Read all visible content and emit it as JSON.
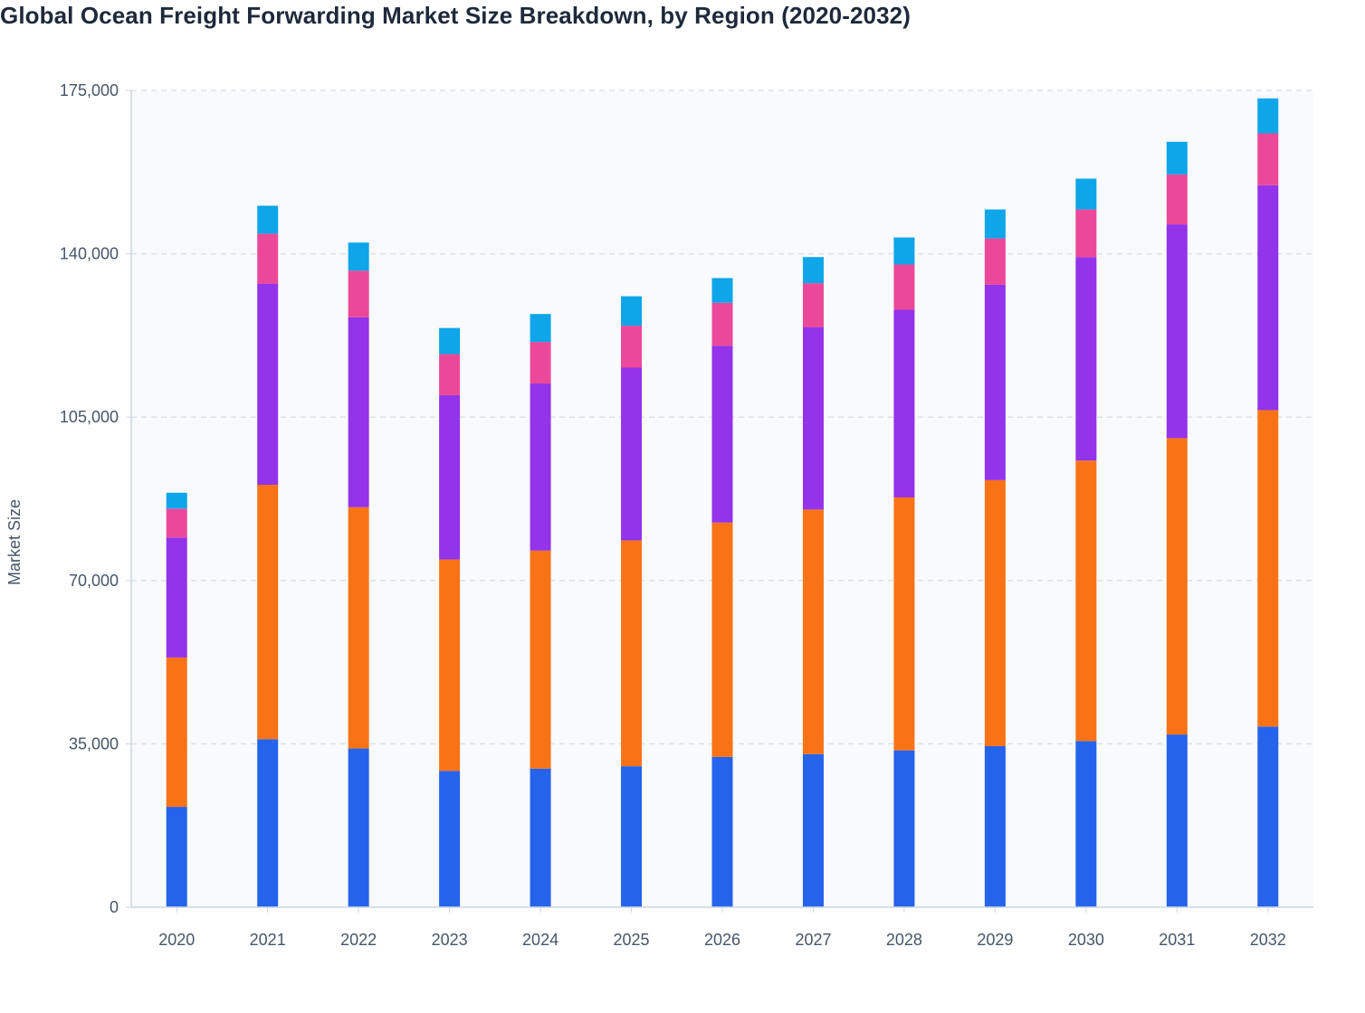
{
  "colors": {
    "background": "#ffffff",
    "plot_background": "#f8fafc",
    "gridline": "#dde3ea",
    "axis_line": "#cbd5e1",
    "text": "#475569",
    "title": "#1e293b"
  },
  "chart_data": {
    "type": "bar",
    "stacked": true,
    "title": "Global Ocean Freight Forwarding Market Size Breakdown, by Region (2020-2032)",
    "xlabel": "",
    "ylabel": "Market Size",
    "ylim": [
      0,
      175000
    ],
    "yticks": [
      0,
      35000,
      70000,
      105000,
      140000,
      175000
    ],
    "ytick_labels": [
      "0",
      "35,000",
      "70,000",
      "105,000",
      "140,000",
      "175,000"
    ],
    "grid": true,
    "legend": "none",
    "categories": [
      "2020",
      "2021",
      "2022",
      "2023",
      "2024",
      "2025",
      "2026",
      "2027",
      "2028",
      "2029",
      "2030",
      "2031",
      "2032"
    ],
    "series": [
      {
        "color": "#2563eb",
        "values": [
          21500,
          36000,
          34000,
          29200,
          29700,
          30200,
          32200,
          32800,
          33600,
          34500,
          35600,
          37000,
          38700
        ]
      },
      {
        "color": "#f97316",
        "values": [
          32000,
          54500,
          51700,
          45300,
          46700,
          48400,
          50200,
          52400,
          54200,
          57000,
          60100,
          63500,
          67800
        ]
      },
      {
        "color": "#9333ea",
        "values": [
          25700,
          43100,
          40700,
          35200,
          35800,
          37000,
          37900,
          39100,
          40200,
          41900,
          43600,
          45800,
          48200
        ]
      },
      {
        "color": "#ec4899",
        "values": [
          6200,
          10700,
          10000,
          8800,
          8900,
          9000,
          9200,
          9400,
          9700,
          9900,
          10200,
          10700,
          11100
        ]
      },
      {
        "color": "#0ea5e9",
        "values": [
          3400,
          6000,
          6000,
          5600,
          6000,
          6300,
          5300,
          5600,
          5800,
          6200,
          6600,
          7000,
          7500
        ]
      }
    ]
  }
}
